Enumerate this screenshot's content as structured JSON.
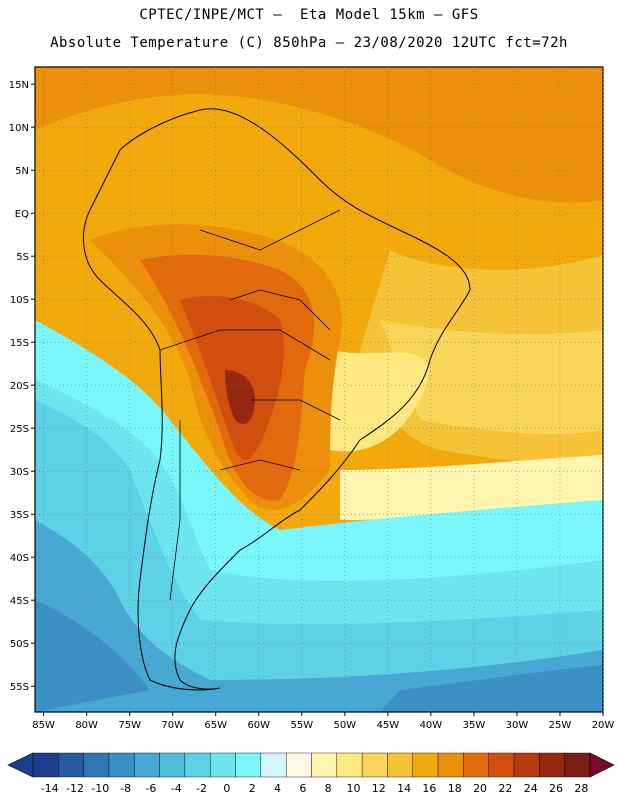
{
  "header": {
    "title_line1": "CPTEC/INPE/MCT –  Eta Model 15km – GFS",
    "title_line2": "Absolute Temperature (C) 850hPa – 23/08/2020 12UTC fct=72h"
  },
  "map": {
    "lat_labels": [
      "15N",
      "10N",
      "5N",
      "EQ",
      "5S",
      "10S",
      "15S",
      "20S",
      "25S",
      "30S",
      "35S",
      "40S",
      "45S",
      "50S",
      "55S"
    ],
    "lat_values": [
      15,
      10,
      5,
      0,
      -5,
      -10,
      -15,
      -20,
      -25,
      -30,
      -35,
      -40,
      -45,
      -50,
      -55
    ],
    "lon_labels": [
      "85W",
      "80W",
      "75W",
      "70W",
      "65W",
      "60W",
      "55W",
      "50W",
      "45W",
      "40W",
      "35W",
      "30W",
      "25W",
      "20W"
    ],
    "lon_values": [
      -85,
      -80,
      -75,
      -70,
      -65,
      -60,
      -55,
      -50,
      -45,
      -40,
      -35,
      -30,
      -25,
      -20
    ],
    "lon_range": [
      -86,
      -20
    ],
    "lat_range": [
      -58,
      17
    ]
  },
  "legend": {
    "labels": [
      "-14",
      "-12",
      "-10",
      "-8",
      "-6",
      "-4",
      "-2",
      "0",
      "2",
      "4",
      "6",
      "8",
      "10",
      "12",
      "14",
      "16",
      "18",
      "20",
      "22",
      "24",
      "26",
      "28"
    ],
    "colors": [
      "#1d3d8f",
      "#255aa3",
      "#2f76b6",
      "#3a90c6",
      "#47a8d3",
      "#52bcdc",
      "#5dd2e6",
      "#6ce5f0",
      "#7af7fb",
      "#d4f5fb",
      "#fff8e6",
      "#fff5b0",
      "#fde980",
      "#f9d55a",
      "#f5c238",
      "#f1a90c",
      "#ec8f0a",
      "#e2690c",
      "#d24e0d",
      "#b93810",
      "#962811",
      "#7a1b16"
    ]
  }
}
